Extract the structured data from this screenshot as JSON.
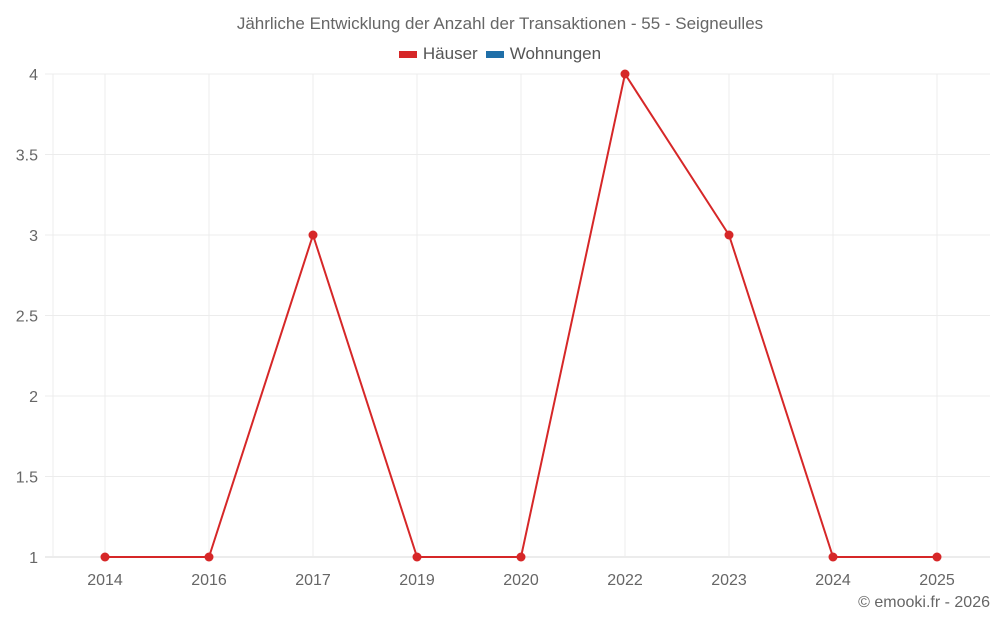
{
  "chart_data": {
    "type": "line",
    "title": "Jährliche Entwicklung der Anzahl der Transaktionen - 55 - Seigneulles",
    "xlabel": "",
    "ylabel": "",
    "categories": [
      "2014",
      "2016",
      "2017",
      "2019",
      "2020",
      "2022",
      "2023",
      "2024",
      "2025"
    ],
    "series": [
      {
        "name": "Häuser",
        "color": "#d62728",
        "values": [
          1,
          1,
          3,
          1,
          1,
          4,
          3,
          1,
          1
        ]
      },
      {
        "name": "Wohnungen",
        "color": "#1f6fa8",
        "values": []
      }
    ],
    "ylim": [
      1,
      4
    ],
    "yticks": [
      "1",
      "1.5",
      "2",
      "2.5",
      "3",
      "3.5",
      "4"
    ],
    "grid": true,
    "legend_position": "top"
  },
  "legend": {
    "items": [
      {
        "label": "Häuser",
        "color": "#d62728"
      },
      {
        "label": "Wohnungen",
        "color": "#1f6fa8"
      }
    ]
  },
  "credit": "© emooki.fr - 2026"
}
